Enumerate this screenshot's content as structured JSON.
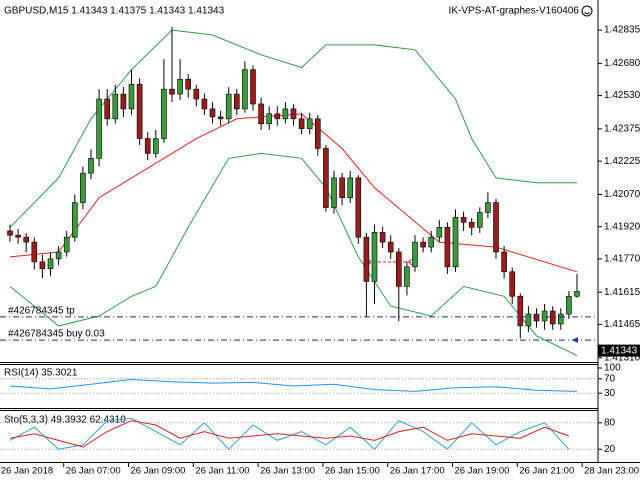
{
  "chart_data": [
    {
      "type": "candlestick",
      "title": "GBPUSD,M15  1.41343 1.41375 1.41343 1.41343",
      "watermark": "IK-VPS-AT-graphes-V160406",
      "ylim": [
        1.4129,
        1.42975
      ],
      "yticks": [
        1.42835,
        {
          "value": 1.4268,
          "label": "1.42680"
        },
        {
          "value": 1.4253,
          "label": "1.42530"
        },
        1.42375,
        1.42225,
        {
          "value": 1.4207,
          "label": "1.42070"
        },
        {
          "value": 1.4192,
          "label": "1.41920"
        },
        {
          "value": 1.4177,
          "label": "1.41770"
        },
        1.41615,
        1.41465,
        {
          "value": 1.4131,
          "label": "1.41310"
        }
      ],
      "xticks": [
        {
          "value": -1,
          "label": "26 Jan 2018"
        },
        {
          "value": 7,
          "label": "26 Jan 07:00"
        },
        {
          "value": 15,
          "label": "26 Jan 09:00"
        },
        {
          "value": 23,
          "label": "26 Jan 11:00"
        },
        {
          "value": 31,
          "label": "26 Jan 13:00"
        },
        {
          "value": 39,
          "label": "26 Jan 15:00"
        },
        {
          "value": 47,
          "label": "26 Jan 17:00"
        },
        {
          "value": 55,
          "label": "26 Jan 19:00"
        },
        {
          "value": 63,
          "label": "26 Jan 21:00"
        },
        {
          "value": 71,
          "label": "28 Jan 23:00"
        }
      ],
      "bull_color": "#3b9b3b",
      "bear_color": "#9a1c1c",
      "open": [
        1.419,
        1.4188,
        1.41871,
        1.41848,
        1.41756,
        1.41724,
        1.4177,
        1.41802,
        1.41871,
        1.42032,
        1.42169,
        1.42238,
        1.42514,
        1.42422,
        1.42537,
        1.42468,
        1.42583,
        1.4233,
        1.42261,
        1.4233,
        1.4256,
        1.42537,
        1.42606,
        1.4256,
        1.42514,
        1.42468,
        1.42431,
        1.42422,
        1.42537,
        1.42468,
        1.42651,
        1.42491,
        1.42399,
        1.42445,
        1.42422,
        1.42468,
        1.42422,
        1.42376,
        1.42422,
        1.42284,
        1.42009,
        1.42147,
        1.42055,
        1.42147,
        1.41871,
        1.41665,
        1.41894,
        1.41848,
        1.41802,
        1.41642,
        1.41733,
        1.41848,
        1.41825,
        1.41871,
        1.41917,
        1.41733,
        1.41963,
        1.4194,
        1.41917,
        1.41986,
        1.42032,
        1.41802,
        1.4171,
        1.41596,
        1.41458,
        1.41513,
        1.41481,
        1.41527,
        1.41467,
        1.41513,
        1.41596
      ],
      "high": [
        1.4193,
        1.4191,
        1.4189,
        1.4187,
        1.4179,
        1.418,
        1.4183,
        1.419,
        1.4207,
        1.422,
        1.4228,
        1.4256,
        1.4256,
        1.4258,
        1.4257,
        1.4265,
        1.4261,
        1.4236,
        1.4237,
        1.427,
        1.4285,
        1.427,
        1.4263,
        1.4258,
        1.4254,
        1.425,
        1.4246,
        1.4257,
        1.4256,
        1.4269,
        1.4267,
        1.4252,
        1.4248,
        1.4248,
        1.425,
        1.4249,
        1.4245,
        1.4245,
        1.4244,
        1.423,
        1.4218,
        1.4217,
        1.4218,
        1.4216,
        1.4189,
        1.4193,
        1.4192,
        1.4188,
        1.4182,
        1.4176,
        1.4188,
        1.4187,
        1.419,
        1.4195,
        1.4194,
        1.42,
        1.4199,
        1.4196,
        1.4201,
        1.4208,
        1.4205,
        1.4183,
        1.4173,
        1.4161,
        1.4155,
        1.4154,
        1.4156,
        1.4155,
        1.4154,
        1.4162,
        1.417
      ],
      "low": [
        1.4185,
        1.4184,
        1.418,
        1.4172,
        1.4168,
        1.4169,
        1.4174,
        1.4178,
        1.4185,
        1.42,
        1.4214,
        1.422,
        1.4239,
        1.424,
        1.4243,
        1.4244,
        1.423,
        1.4223,
        1.4224,
        1.4231,
        1.425,
        1.4251,
        1.4252,
        1.4248,
        1.4244,
        1.424,
        1.4239,
        1.424,
        1.4244,
        1.4245,
        1.4246,
        1.4237,
        1.4237,
        1.4239,
        1.424,
        1.4239,
        1.4235,
        1.4235,
        1.4225,
        1.4199,
        1.4198,
        1.4202,
        1.4203,
        1.4184,
        1.415,
        1.4156,
        1.4182,
        1.4177,
        1.4148,
        1.416,
        1.4171,
        1.418,
        1.418,
        1.4185,
        1.417,
        1.4171,
        1.419,
        1.4188,
        1.4189,
        1.4196,
        1.4177,
        1.4168,
        1.4156,
        1.414,
        1.4143,
        1.4145,
        1.4144,
        1.4144,
        1.4144,
        1.4149,
        1.4159
      ],
      "close": [
        1.4188,
        1.41871,
        1.41848,
        1.41756,
        1.41724,
        1.4177,
        1.41802,
        1.41871,
        1.42032,
        1.42169,
        1.42238,
        1.42514,
        1.42422,
        1.42537,
        1.42468,
        1.42583,
        1.4233,
        1.42261,
        1.4233,
        1.4256,
        1.42537,
        1.42606,
        1.4256,
        1.42514,
        1.42468,
        1.42431,
        1.42422,
        1.42537,
        1.42468,
        1.42651,
        1.42491,
        1.42399,
        1.42445,
        1.42422,
        1.42468,
        1.42422,
        1.42376,
        1.42422,
        1.42284,
        1.42009,
        1.42147,
        1.42055,
        1.42147,
        1.41871,
        1.41665,
        1.41894,
        1.41848,
        1.41802,
        1.41642,
        1.41733,
        1.41848,
        1.41825,
        1.41871,
        1.41917,
        1.41733,
        1.41963,
        1.4194,
        1.41917,
        1.41986,
        1.42032,
        1.41802,
        1.4171,
        1.41596,
        1.41458,
        1.41513,
        1.41481,
        1.41527,
        1.41467,
        1.41513,
        1.41596,
        1.41619
      ],
      "series": [
        {
          "color": "#2e9a4a",
          "x": [
            0,
            6,
            10,
            15,
            20,
            25,
            31,
            36,
            39,
            45,
            50,
            55,
            57,
            60,
            65,
            70
          ],
          "values": [
            1.41917,
            1.42147,
            1.42422,
            1.42651,
            1.42835,
            1.42812,
            1.4272,
            1.42661,
            1.42766,
            1.42766,
            1.42743,
            1.42514,
            1.4233,
            1.42147,
            1.42124,
            1.42124
          ]
        },
        {
          "color": "#e02020",
          "x": [
            0,
            6,
            11,
            17,
            23,
            28,
            36,
            41,
            45,
            53,
            60,
            70
          ],
          "values": [
            1.41779,
            1.41802,
            1.42055,
            1.42192,
            1.4233,
            1.42422,
            1.42445,
            1.42284,
            1.42101,
            1.41848,
            1.41825,
            1.4171
          ]
        },
        {
          "color": "#2e9a4a",
          "x": [
            0,
            6,
            11,
            15,
            18,
            22,
            27,
            31,
            36,
            39,
            43,
            47,
            52,
            56,
            61,
            65,
            70
          ],
          "values": [
            1.41642,
            1.41458,
            1.41504,
            1.41596,
            1.41642,
            1.41917,
            1.42238,
            1.42261,
            1.42238,
            1.42101,
            1.41779,
            1.4155,
            1.41504,
            1.41642,
            1.41596,
            1.41412,
            1.4132
          ]
        }
      ],
      "orders": [
        {
          "label": "#426784345 tp",
          "price": 1.415
        },
        {
          "label": "#426784345 buy 0.03",
          "price": 1.41392
        }
      ],
      "bid": 1.41343
    },
    {
      "type": "line",
      "title": "RSI(14) 35.3021",
      "ylim": [
        0,
        100
      ],
      "yticks": [
        100,
        70,
        30
      ],
      "series": [
        {
          "color": "#1e90ff",
          "x": [
            0,
            5,
            10,
            15,
            20,
            25,
            30,
            35,
            40,
            45,
            50,
            55,
            60,
            65,
            70
          ],
          "values": [
            50,
            42,
            55,
            68,
            62,
            58,
            60,
            50,
            55,
            40,
            35,
            45,
            48,
            38,
            35
          ]
        }
      ]
    },
    {
      "type": "line",
      "title": "Sto(5,3,3) 49.3932 62.4310",
      "ylim": [
        0,
        100
      ],
      "yticks": [
        80,
        20
      ],
      "series": [
        {
          "color": "#2aa0d8",
          "x": [
            0,
            3,
            6,
            9,
            12,
            15,
            18,
            21,
            24,
            27,
            30,
            33,
            36,
            39,
            42,
            45,
            48,
            51,
            54,
            57,
            60,
            63,
            66,
            69
          ],
          "values": [
            40,
            70,
            20,
            30,
            85,
            90,
            60,
            30,
            80,
            20,
            75,
            40,
            60,
            30,
            70,
            20,
            85,
            60,
            20,
            80,
            30,
            60,
            80,
            20
          ]
        },
        {
          "color": "#d42020",
          "x": [
            0,
            3,
            6,
            9,
            12,
            15,
            18,
            21,
            24,
            27,
            30,
            33,
            36,
            39,
            42,
            45,
            48,
            51,
            54,
            57,
            60,
            63,
            66,
            69
          ],
          "values": [
            45,
            55,
            40,
            25,
            60,
            85,
            75,
            45,
            60,
            45,
            50,
            55,
            50,
            45,
            50,
            40,
            60,
            70,
            40,
            55,
            50,
            45,
            70,
            50
          ]
        }
      ]
    }
  ]
}
